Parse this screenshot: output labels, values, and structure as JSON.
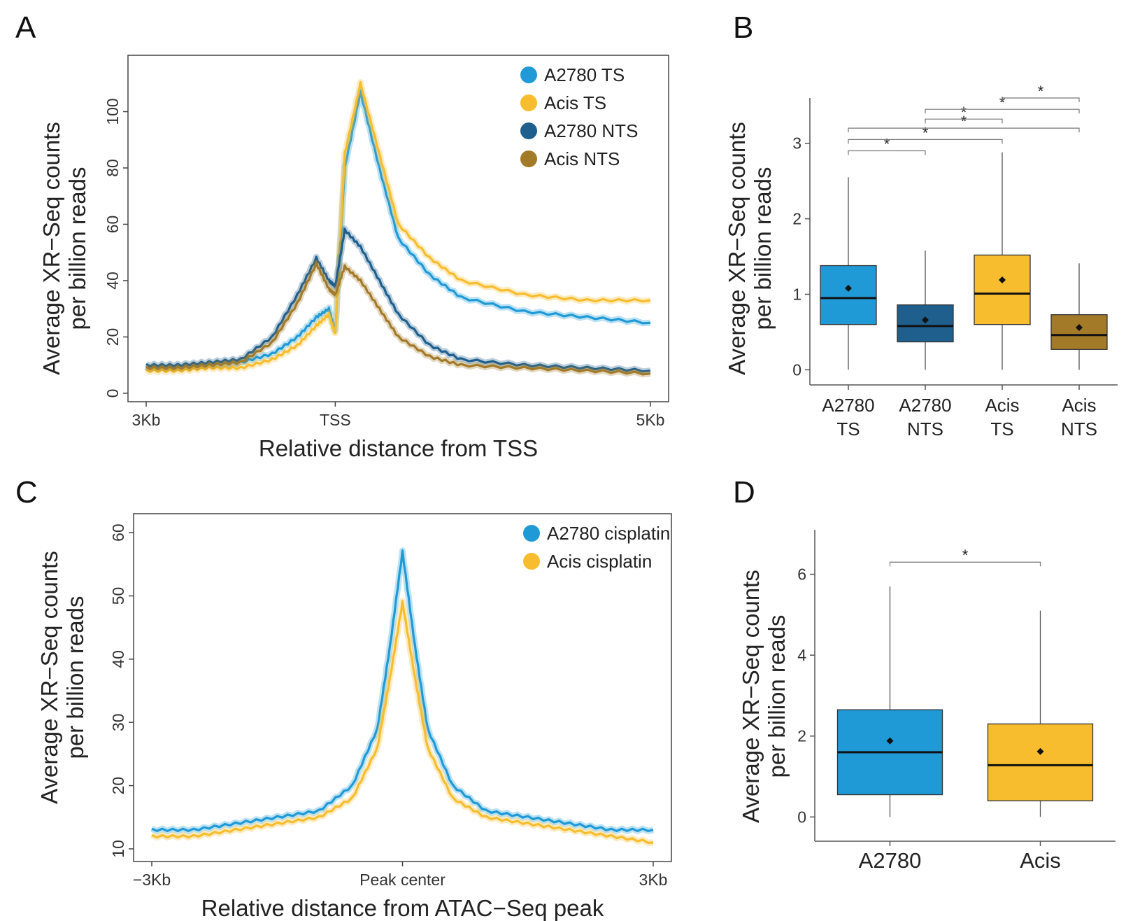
{
  "panels": {
    "a": "A",
    "b": "B",
    "c": "C",
    "d": "D"
  },
  "chart_data": [
    {
      "id": "A",
      "type": "line",
      "title": "",
      "xlabel": "Relative distance from TSS",
      "ylabel": [
        "Average XR−Seq counts",
        "per billion reads"
      ],
      "xlim": [
        -3000,
        5000
      ],
      "ylim": [
        -3,
        120
      ],
      "yticks": [
        0,
        20,
        40,
        60,
        80,
        100
      ],
      "xticks": [
        {
          "value": -3000,
          "label": "3Kb"
        },
        {
          "value": 0,
          "label": "TSS"
        },
        {
          "value": 5000,
          "label": "5Kb"
        }
      ],
      "legend_position": "top-right",
      "x": [
        -3000,
        -2500,
        -2000,
        -1500,
        -1000,
        -600,
        -300,
        -100,
        0,
        150,
        400,
        700,
        1000,
        1500,
        2000,
        3000,
        4000,
        5000
      ],
      "series": [
        {
          "name": "A2780 TS",
          "color": "#1f9ad6",
          "values": [
            9,
            9,
            10,
            11,
            14,
            20,
            27,
            30,
            22,
            80,
            107,
            80,
            55,
            42,
            34,
            29,
            27,
            25
          ]
        },
        {
          "name": "Acis TS",
          "color": "#f7bd2e",
          "values": [
            8,
            8,
            9,
            9,
            12,
            17,
            24,
            28,
            21,
            85,
            110,
            85,
            60,
            48,
            40,
            35,
            33,
            33
          ]
        },
        {
          "name": "A2780 NTS",
          "color": "#1e5f8e",
          "values": [
            10,
            10,
            11,
            12,
            20,
            35,
            48,
            40,
            38,
            58,
            52,
            40,
            28,
            17,
            12,
            10,
            9,
            8
          ]
        },
        {
          "name": "Acis NTS",
          "color": "#a27a28",
          "values": [
            9,
            9,
            10,
            11,
            18,
            32,
            46,
            37,
            35,
            45,
            40,
            30,
            20,
            13,
            10,
            9,
            8,
            7
          ]
        }
      ]
    },
    {
      "id": "B",
      "type": "box",
      "ylabel": [
        "Average XR−Seq counts",
        "per billion reads"
      ],
      "ylim": [
        -0.2,
        3.6
      ],
      "yticks": [
        0,
        1,
        2,
        3
      ],
      "categories": [
        "A2780 TS",
        "A2780 NTS",
        "Acis TS",
        "Acis NTS"
      ],
      "category_lines": [
        [
          "A2780",
          "TS"
        ],
        [
          "A2780",
          "NTS"
        ],
        [
          "Acis",
          "TS"
        ],
        [
          "Acis",
          "NTS"
        ]
      ],
      "boxes": [
        {
          "name": "A2780 TS",
          "color": "#1f9ad6",
          "whisker_low": 0,
          "q1": 0.6,
          "median": 0.95,
          "q3": 1.38,
          "whisker_high": 2.55,
          "mean": 1.08
        },
        {
          "name": "A2780 NTS",
          "color": "#1e5f8e",
          "whisker_low": 0,
          "q1": 0.37,
          "median": 0.58,
          "q3": 0.86,
          "whisker_high": 1.58,
          "mean": 0.66
        },
        {
          "name": "Acis TS",
          "color": "#f7bd2e",
          "whisker_low": 0,
          "q1": 0.6,
          "median": 1.01,
          "q3": 1.52,
          "whisker_high": 2.88,
          "mean": 1.19
        },
        {
          "name": "Acis NTS",
          "color": "#a27a28",
          "whisker_low": 0,
          "q1": 0.27,
          "median": 0.46,
          "q3": 0.73,
          "whisker_high": 1.41,
          "mean": 0.56
        }
      ],
      "significance": [
        {
          "from": 0,
          "to": 1,
          "y": 2.9,
          "label": "*"
        },
        {
          "from": 0,
          "to": 2,
          "y": 3.05,
          "label": "*"
        },
        {
          "from": 0,
          "to": 3,
          "y": 3.2,
          "label": "*"
        },
        {
          "from": 1,
          "to": 2,
          "y": 3.32,
          "label": "*"
        },
        {
          "from": 1,
          "to": 3,
          "y": 3.45,
          "label": "*"
        },
        {
          "from": 2,
          "to": 3,
          "y": 3.6,
          "label": "*"
        }
      ]
    },
    {
      "id": "C",
      "type": "line",
      "title": "",
      "xlabel": "Relative distance from ATAC−Seq peak",
      "ylabel": [
        "Average XR−Seq counts",
        "per billion reads"
      ],
      "xlim": [
        -3000,
        3000
      ],
      "ylim": [
        8,
        63
      ],
      "yticks": [
        10,
        20,
        30,
        40,
        50,
        60
      ],
      "xticks": [
        {
          "value": -3000,
          "label": "−3Kb"
        },
        {
          "value": 0,
          "label": "Peak center"
        },
        {
          "value": 3000,
          "label": "3Kb"
        }
      ],
      "legend_position": "top-right",
      "x": [
        -3000,
        -2500,
        -2000,
        -1500,
        -1000,
        -600,
        -300,
        -150,
        0,
        150,
        300,
        600,
        1000,
        1500,
        2000,
        2500,
        3000
      ],
      "series": [
        {
          "name": "A2780 cisplatin",
          "color": "#1f9ad6",
          "values": [
            13,
            13,
            14,
            15,
            16,
            20,
            29,
            42,
            57,
            42,
            29,
            20,
            16,
            15,
            14,
            13,
            13
          ]
        },
        {
          "name": "Acis cisplatin",
          "color": "#f7bd2e",
          "values": [
            12,
            12,
            13,
            14,
            15,
            18,
            26,
            37,
            49,
            37,
            26,
            18,
            15,
            14,
            13,
            12,
            11
          ]
        }
      ]
    },
    {
      "id": "D",
      "type": "box",
      "ylabel": [
        "Average XR−Seq counts",
        "per billion reads"
      ],
      "ylim": [
        -0.6,
        7.1
      ],
      "yticks": [
        0,
        2,
        4,
        6
      ],
      "categories": [
        "A2780",
        "Acis"
      ],
      "category_lines": [
        [
          "A2780"
        ],
        [
          "Acis"
        ]
      ],
      "boxes": [
        {
          "name": "A2780",
          "color": "#1f9ad6",
          "whisker_low": 0,
          "q1": 0.55,
          "median": 1.6,
          "q3": 2.65,
          "whisker_high": 5.7,
          "mean": 1.88
        },
        {
          "name": "Acis",
          "color": "#f7bd2e",
          "whisker_low": 0,
          "q1": 0.4,
          "median": 1.28,
          "q3": 2.3,
          "whisker_high": 5.1,
          "mean": 1.62
        }
      ],
      "significance": [
        {
          "from": 0,
          "to": 1,
          "y": 6.3,
          "label": "*"
        }
      ]
    }
  ]
}
